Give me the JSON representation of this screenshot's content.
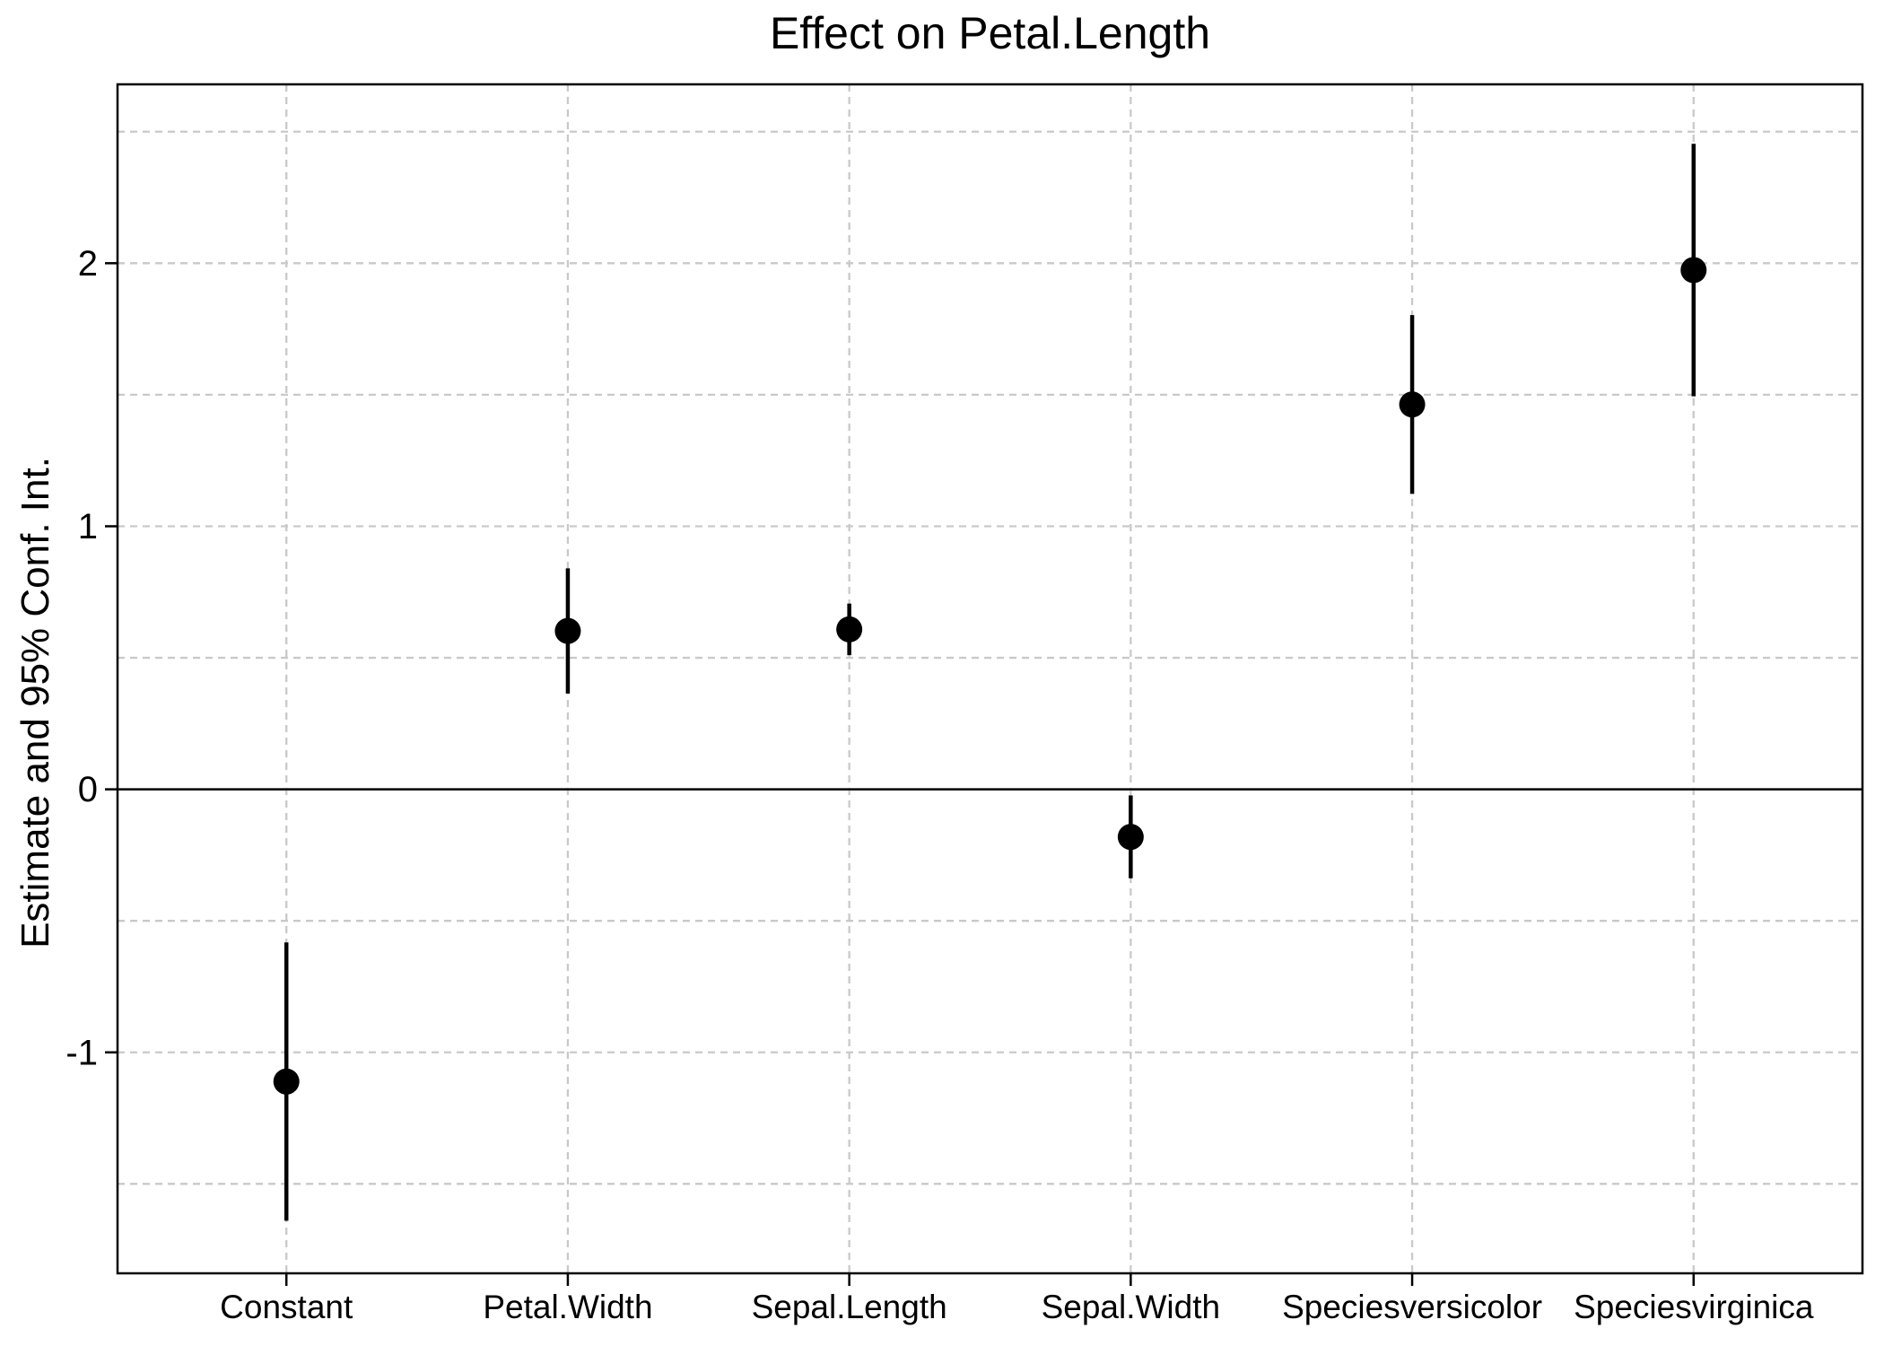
{
  "chart_data": {
    "type": "scatter",
    "subtype": "coefficient_plot_with_error_bars",
    "title": "Effect on Petal.Length",
    "ylabel": "Estimate and 95% Conf. Int.",
    "xlabel": "",
    "categories": [
      "Constant",
      "Petal.Width",
      "Sepal.Length",
      "Sepal.Width",
      "Speciesversicolor",
      "Speciesvirginica"
    ],
    "series": [
      {
        "name": "Estimate",
        "values": [
          -1.111,
          0.602,
          0.608,
          -0.181,
          1.463,
          1.974
        ],
        "ci_lower": [
          -1.64,
          0.364,
          0.51,
          -0.338,
          1.123,
          1.494
        ],
        "ci_upper": [
          -0.582,
          0.84,
          0.706,
          -0.023,
          1.803,
          2.454
        ]
      }
    ],
    "yticks": [
      -1,
      0,
      1,
      2
    ],
    "ylim": [
      -1.84,
      2.68
    ],
    "grid": true,
    "grid_style": "dashed",
    "gridline_step_y": 0.5,
    "vertical_gridline_per_category": true,
    "zero_line": true,
    "legend_position": "none",
    "colors": {
      "marker": "#000000",
      "error_bar": "#000000",
      "grid": "#c9c9c9",
      "frame": "#000000",
      "zero_line": "#000000",
      "text": "#000000",
      "background": "#ffffff"
    }
  }
}
